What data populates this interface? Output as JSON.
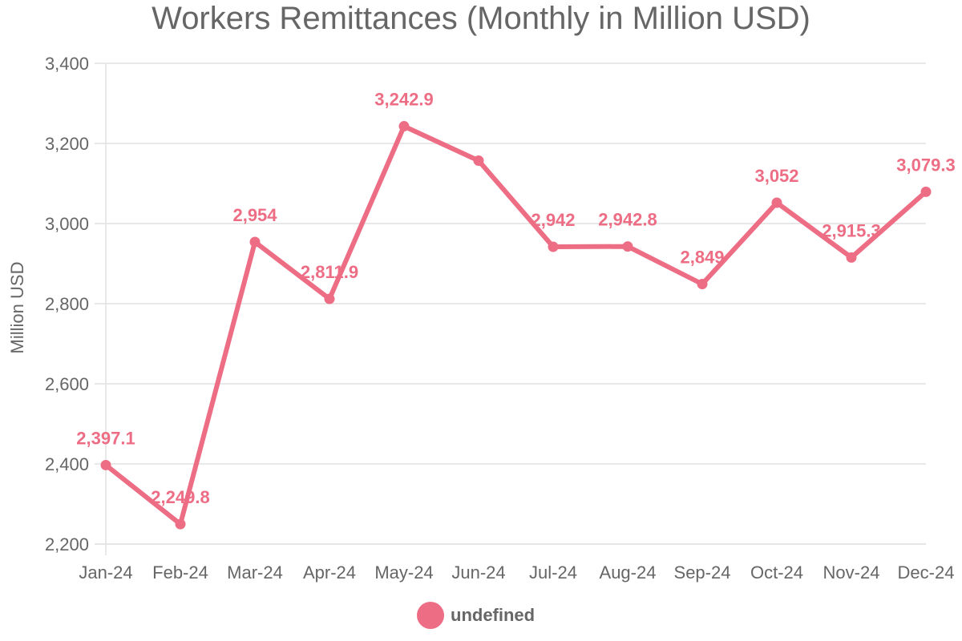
{
  "chart_data": {
    "type": "line",
    "title": "Workers Remittances (Monthly in Million USD)",
    "xlabel": "",
    "ylabel": "Million USD",
    "categories": [
      "Jan-24",
      "Feb-24",
      "Mar-24",
      "Apr-24",
      "May-24",
      "Jun-24",
      "Jul-24",
      "Aug-24",
      "Sep-24",
      "Oct-24",
      "Nov-24",
      "Dec-24"
    ],
    "series": [
      {
        "name": "undefined",
        "values": [
          2397.1,
          2249.8,
          2954,
          2811.9,
          3242.9,
          3157,
          2942,
          2942.8,
          2849,
          3052,
          2915.3,
          3079.3
        ],
        "labels": [
          "2,397.1",
          "2,249.8",
          "2,954",
          "2,811.9",
          "3,242.9",
          "",
          "2,942",
          "2,942.8",
          "2,849",
          "3,052",
          "2,915.3",
          "3,079.3"
        ],
        "color": "#ed6d85"
      }
    ],
    "ylim": [
      2200,
      3400
    ],
    "yticks": [
      2200,
      2400,
      2600,
      2800,
      3000,
      3200,
      3400
    ],
    "ytick_labels": [
      "2,200",
      "2,400",
      "2,600",
      "2,800",
      "3,000",
      "3,200",
      "3,400"
    ],
    "grid": true,
    "legend_position": "bottom"
  }
}
